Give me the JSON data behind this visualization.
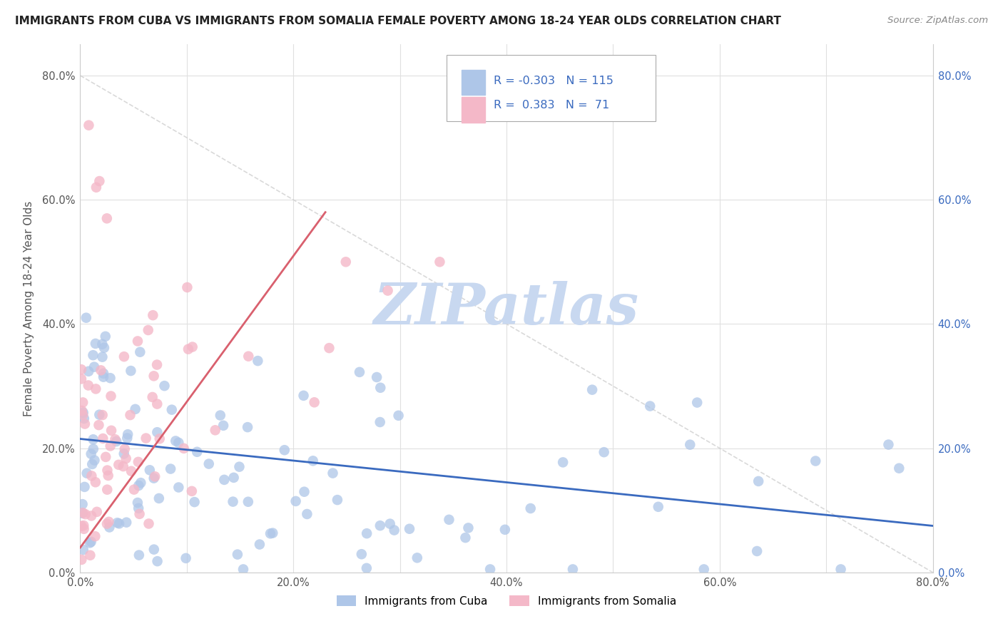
{
  "title": "IMMIGRANTS FROM CUBA VS IMMIGRANTS FROM SOMALIA FEMALE POVERTY AMONG 18-24 YEAR OLDS CORRELATION CHART",
  "source": "Source: ZipAtlas.com",
  "ylabel": "Female Poverty Among 18-24 Year Olds",
  "xlim": [
    0.0,
    0.8
  ],
  "ylim": [
    0.0,
    0.85
  ],
  "xticks": [
    0.0,
    0.1,
    0.2,
    0.3,
    0.4,
    0.5,
    0.6,
    0.7,
    0.8
  ],
  "yticks": [
    0.0,
    0.2,
    0.4,
    0.6,
    0.8
  ],
  "xticklabels": [
    "0.0%",
    "",
    "20.0%",
    "",
    "40.0%",
    "",
    "60.0%",
    "",
    "80.0%"
  ],
  "yticklabels": [
    "0.0%",
    "20.0%",
    "40.0%",
    "60.0%",
    "80.0%"
  ],
  "right_yticklabels": [
    "0.0%",
    "20.0%",
    "40.0%",
    "60.0%",
    "80.0%"
  ],
  "cuba_color": "#aec6e8",
  "somalia_color": "#f4b8c8",
  "cuba_line_color": "#3a6abf",
  "somalia_line_color": "#d9606e",
  "diag_line_color": "#d0d0d0",
  "R_cuba": -0.303,
  "N_cuba": 115,
  "R_somalia": 0.383,
  "N_somalia": 71,
  "legend_text_color": "#3a6abf",
  "legend_N_color": "#222222",
  "watermark": "ZIPatlas",
  "watermark_color": "#c8d8f0",
  "background_color": "#ffffff",
  "grid_color": "#e0e0e0",
  "tick_color": "#555555",
  "right_tick_color": "#3a6abf"
}
